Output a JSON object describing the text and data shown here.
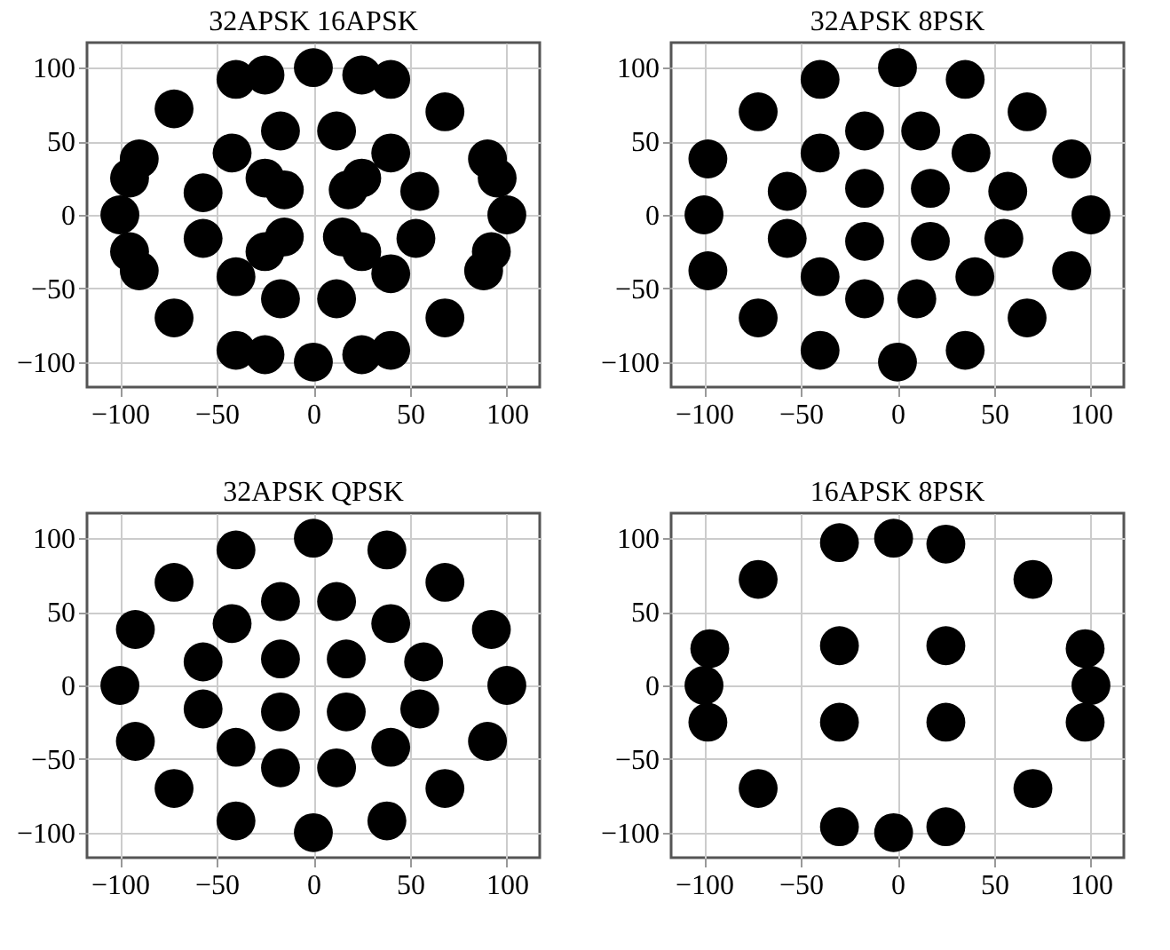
{
  "chart_data": [
    {
      "type": "scatter",
      "title": "32APSK  16APSK",
      "xlim": [
        -117,
        117
      ],
      "ylim": [
        -117,
        117
      ],
      "xticks": [
        -100,
        -50,
        0,
        50,
        100
      ],
      "yticks": [
        -100,
        -50,
        0,
        50,
        100
      ],
      "grid": true,
      "marker": "circle",
      "series": [
        {
          "color": "#000000",
          "x": [
            -40,
            -25,
            0,
            25,
            40,
            68,
            90,
            95,
            100,
            92,
            88,
            68,
            40,
            25,
            0,
            -25,
            -40,
            -72,
            -95,
            -90,
            -100,
            -95,
            -90,
            -72,
            -17,
            12,
            40,
            55,
            53,
            40,
            12,
            -17,
            -40,
            -57,
            -57,
            -42,
            -25,
            -15,
            18,
            25,
            15,
            25,
            -15,
            -25
          ],
          "values": [
            92,
            95,
            100,
            95,
            92,
            70,
            38,
            25,
            0,
            -25,
            -38,
            -70,
            -92,
            -95,
            -100,
            -95,
            -92,
            -70,
            -25,
            -38,
            0,
            25,
            38,
            72,
            57,
            57,
            42,
            16,
            -16,
            -40,
            -57,
            -57,
            -42,
            -16,
            15,
            42,
            25,
            17,
            17,
            25,
            -15,
            -25,
            -15,
            -25
          ]
        }
      ]
    },
    {
      "type": "scatter",
      "title": "32APSK  8PSK",
      "xlim": [
        -117,
        117
      ],
      "ylim": [
        -117,
        117
      ],
      "xticks": [
        -100,
        -50,
        0,
        50,
        100
      ],
      "yticks": [
        -100,
        -50,
        0,
        50,
        100
      ],
      "grid": true,
      "marker": "circle",
      "series": [
        {
          "color": "#000000",
          "x": [
            0,
            35,
            67,
            90,
            100,
            90,
            67,
            35,
            0,
            -40,
            -72,
            -98,
            -100,
            -98,
            -72,
            -40,
            12,
            38,
            57,
            55,
            40,
            10,
            -17,
            -40,
            -57,
            -57,
            -40,
            -17,
            17,
            17,
            -17,
            -17
          ],
          "values": [
            100,
            92,
            70,
            38,
            0,
            -38,
            -70,
            -92,
            -100,
            -92,
            -70,
            -38,
            0,
            38,
            70,
            92,
            57,
            42,
            16,
            -16,
            -42,
            -57,
            -57,
            -42,
            -16,
            16,
            42,
            57,
            18,
            -18,
            -18,
            18
          ]
        }
      ]
    },
    {
      "type": "scatter",
      "title": "32APSK  QPSK",
      "xlim": [
        -117,
        117
      ],
      "ylim": [
        -117,
        117
      ],
      "xticks": [
        -100,
        -50,
        0,
        50,
        100
      ],
      "yticks": [
        -100,
        -50,
        0,
        50,
        100
      ],
      "grid": true,
      "marker": "circle",
      "series": [
        {
          "color": "#000000",
          "x": [
            0,
            38,
            68,
            92,
            100,
            90,
            68,
            38,
            0,
            -40,
            -72,
            -92,
            -100,
            -92,
            -72,
            -40,
            12,
            40,
            57,
            55,
            40,
            12,
            -17,
            -40,
            -57,
            -57,
            -42,
            -17,
            17,
            17,
            -17,
            -17
          ],
          "values": [
            100,
            92,
            70,
            38,
            0,
            -38,
            -70,
            -92,
            -100,
            -92,
            -70,
            -38,
            0,
            38,
            70,
            92,
            57,
            42,
            16,
            -16,
            -42,
            -56,
            -56,
            -42,
            -16,
            16,
            42,
            57,
            18,
            -18,
            -18,
            18
          ]
        }
      ]
    },
    {
      "type": "scatter",
      "title": "16APSK  8PSK",
      "xlim": [
        -117,
        117
      ],
      "ylim": [
        -117,
        117
      ],
      "xticks": [
        -100,
        -50,
        0,
        50,
        100
      ],
      "yticks": [
        -100,
        -50,
        0,
        50,
        100
      ],
      "grid": true,
      "marker": "circle",
      "series": [
        {
          "color": "#000000",
          "x": [
            -30,
            -2,
            25,
            70,
            97,
            100,
            97,
            70,
            25,
            -2,
            -30,
            -72,
            -98,
            -100,
            -97,
            -72,
            -30,
            25,
            -30,
            25
          ],
          "values": [
            97,
            100,
            96,
            72,
            25,
            0,
            -25,
            -70,
            -96,
            -100,
            -96,
            -70,
            -25,
            0,
            25,
            72,
            27,
            27,
            -25,
            -25
          ]
        }
      ]
    }
  ]
}
